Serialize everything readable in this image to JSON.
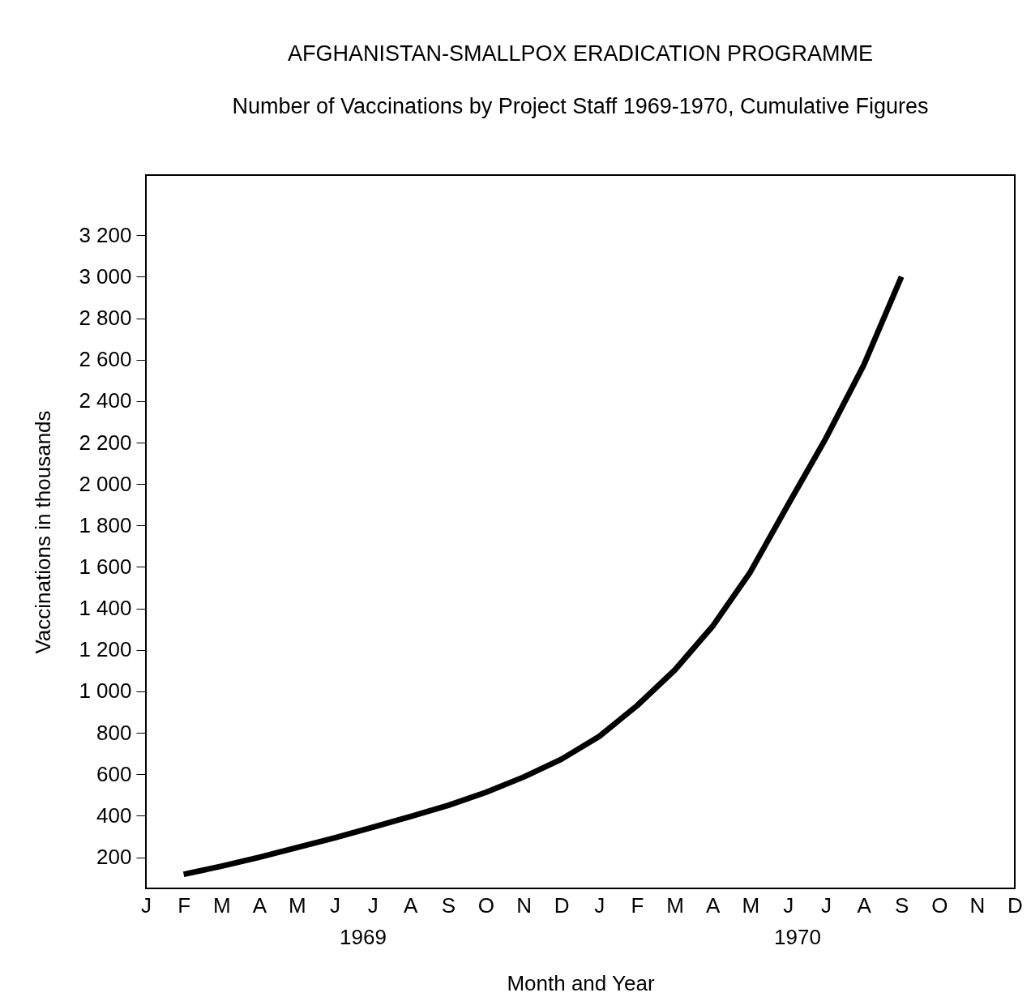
{
  "chart_data": {
    "type": "line",
    "title": "AFGHANISTAN-SMALLPOX ERADICATION PROGRAMME",
    "subtitle": "Number of Vaccinations by Project Staff  1969-1970, Cumulative Figures",
    "xlabel": "Month and Year",
    "ylabel": "Vaccinations in thousands",
    "annotations": [
      "1969",
      "1970"
    ],
    "categories": [
      "J",
      "F",
      "M",
      "A",
      "M",
      "J",
      "J",
      "A",
      "S",
      "O",
      "N",
      "D",
      "J",
      "F",
      "M",
      "A",
      "M",
      "J",
      "J",
      "A",
      "S",
      "O",
      "N",
      "D"
    ],
    "series": [
      {
        "color": "#000000",
        "values": [
          null,
          118,
          157,
          200,
          247,
          294,
          345,
          396,
          450,
          513,
          587,
          673,
          783,
          931,
          1103,
          1314,
          1576,
          1901,
          2221,
          2573,
          3000,
          null,
          null,
          null
        ]
      }
    ],
    "ylim": [
      50,
      3490
    ],
    "yticks": [
      200,
      400,
      600,
      800,
      {
        "value": 1000,
        "label": "1 000"
      },
      {
        "value": 1200,
        "label": "1 200"
      },
      {
        "value": 1400,
        "label": "1 400"
      },
      {
        "value": 1600,
        "label": "1 600"
      },
      {
        "value": 1800,
        "label": "1 800"
      },
      {
        "value": 2000,
        "label": "2 000"
      },
      {
        "value": 2200,
        "label": "2 200"
      },
      {
        "value": 2400,
        "label": "2 400"
      },
      {
        "value": 2600,
        "label": "2 600"
      },
      {
        "value": 2800,
        "label": "2 800"
      },
      {
        "value": 3000,
        "label": "3 000"
      },
      {
        "value": 3200,
        "label": "3 200"
      }
    ],
    "marker": "none",
    "line_style": "solid"
  }
}
